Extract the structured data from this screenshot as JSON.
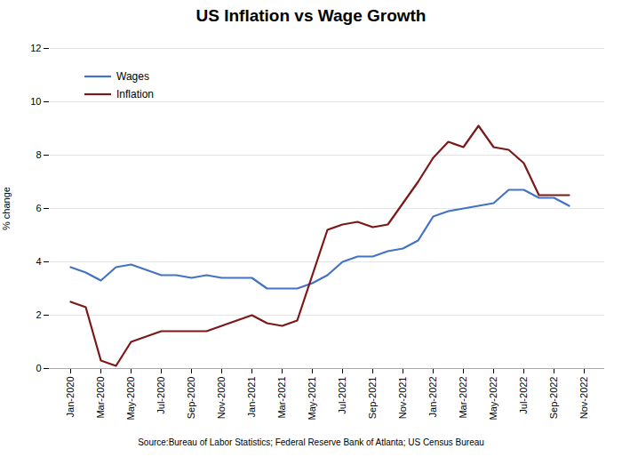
{
  "chart_data": {
    "type": "line",
    "title": "US Inflation vs Wage Growth",
    "ylabel": "% change",
    "caption": "Source:Bureau of Labor Statistics; Federal Reserve Bank of Atlanta; US Census Bureau",
    "categories": [
      "Jan-2020",
      null,
      "Mar-2020",
      null,
      "May-2020",
      null,
      "Jul-2020",
      null,
      "Sep-2020",
      null,
      "Nov-2020",
      null,
      "Jan-2021",
      null,
      "Mar-2021",
      null,
      "May-2021",
      null,
      "Jul-2021",
      null,
      "Sep-2021",
      null,
      "Nov-2021",
      null,
      "Jan-2022",
      null,
      "Mar-2022",
      null,
      "May-2022",
      null,
      "Jul-2022",
      null,
      "Sep-2022",
      null,
      "Nov-2022"
    ],
    "series": [
      {
        "name": "Wages",
        "color": "#4472C4",
        "values": [
          3.8,
          3.6,
          3.3,
          3.8,
          3.9,
          3.7,
          3.5,
          3.5,
          3.4,
          3.5,
          3.4,
          3.4,
          3.4,
          3.0,
          3.0,
          3.0,
          3.2,
          3.5,
          4.0,
          4.2,
          4.2,
          4.4,
          4.5,
          4.8,
          5.7,
          5.9,
          6.0,
          6.1,
          6.2,
          6.7,
          6.7,
          6.4,
          6.4,
          6.1,
          null
        ]
      },
      {
        "name": "Inflation",
        "color": "#7B1818",
        "values": [
          2.5,
          2.3,
          0.3,
          0.1,
          1.0,
          1.2,
          1.4,
          1.4,
          1.4,
          1.4,
          1.6,
          1.8,
          2.0,
          1.7,
          1.6,
          1.8,
          3.5,
          5.2,
          5.4,
          5.5,
          5.3,
          5.4,
          6.2,
          7.0,
          7.9,
          8.5,
          8.3,
          9.1,
          8.3,
          8.2,
          7.7,
          6.5,
          6.5,
          6.5,
          null
        ]
      }
    ],
    "ylim": [
      0,
      12
    ],
    "yticks": [
      0,
      2,
      4,
      6,
      8,
      10,
      12
    ],
    "grid": true,
    "legend": "upper left"
  }
}
